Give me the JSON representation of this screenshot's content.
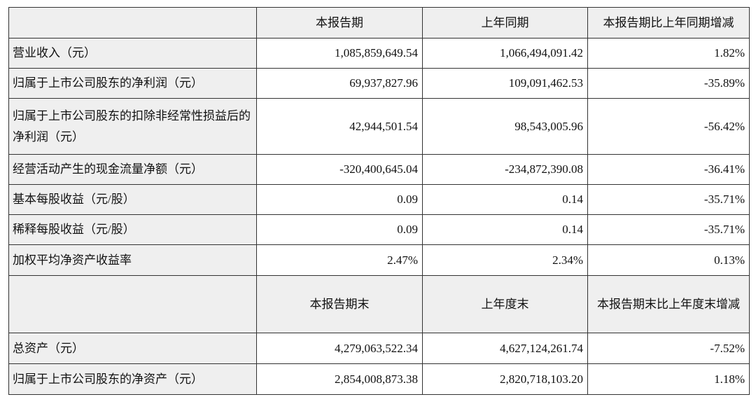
{
  "table": {
    "header": [
      "本报告期",
      "上年同期",
      "本报告期比上年同期增减"
    ],
    "rows": [
      [
        "营业收入（元）",
        "1,085,859,649.54",
        "1,066,494,091.42",
        "1.82%"
      ],
      [
        "归属于上市公司股东的净利润（元）",
        "69,937,827.96",
        "109,091,462.53",
        "-35.89%"
      ],
      [
        "归属于上市公司股东的扣除非经常性损益后的净利润（元）",
        "42,944,501.54",
        "98,543,005.96",
        "-56.42%"
      ],
      [
        "经营活动产生的现金流量净额（元）",
        "-320,400,645.04",
        "-234,872,390.08",
        "-36.41%"
      ],
      [
        "基本每股收益（元/股）",
        "0.09",
        "0.14",
        "-35.71%"
      ],
      [
        "稀释每股收益（元/股）",
        "0.09",
        "0.14",
        "-35.71%"
      ],
      [
        "加权平均净资产收益率",
        "2.47%",
        "2.34%",
        "0.13%"
      ]
    ],
    "header2": [
      "本报告期末",
      "上年度末",
      "本报告期末比上年度末增减"
    ],
    "rows2": [
      [
        "总资产（元）",
        "4,279,063,522.34",
        "4,627,124,261.74",
        "-7.52%"
      ],
      [
        "归属于上市公司股东的净资产（元）",
        "2,854,008,873.38",
        "2,820,718,103.20",
        "1.18%"
      ]
    ]
  }
}
